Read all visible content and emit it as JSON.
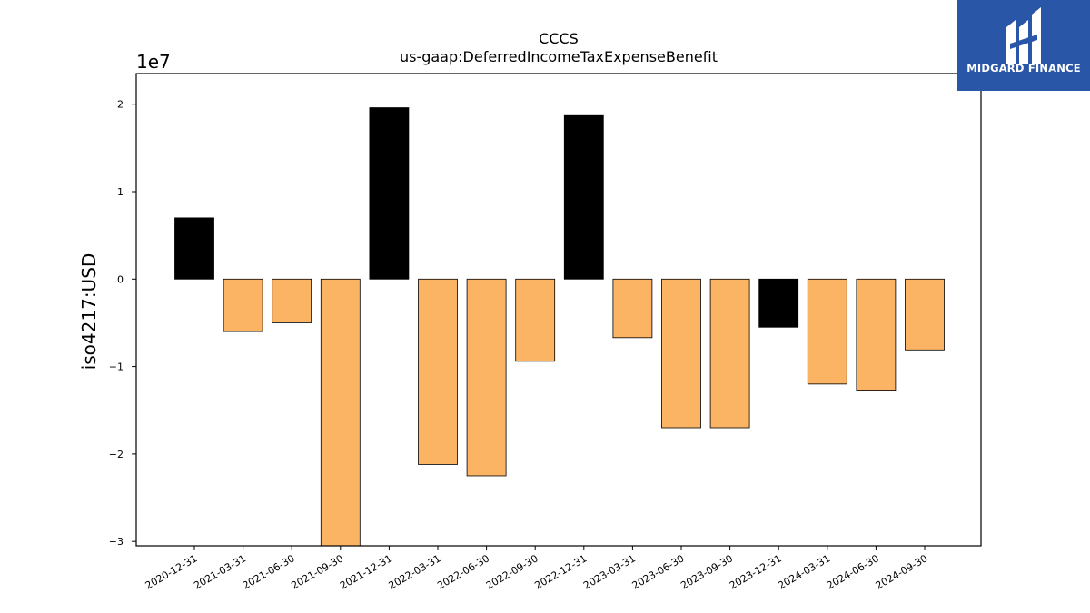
{
  "chart_data": {
    "type": "bar",
    "title": "CCCS",
    "subtitle": "us-gaap:DeferredIncomeTaxExpenseBenefit",
    "ylabel": "iso4217:USD",
    "xlabel": "",
    "y_offset_label": "1e7",
    "y_scale": 10000000,
    "ylim": [
      -30500000,
      23500000
    ],
    "yticks": [
      -3,
      -2,
      -1,
      0,
      1,
      2
    ],
    "ytick_labels": [
      "−3",
      "−2",
      "−1",
      "0",
      "1",
      "2"
    ],
    "categories": [
      "2020-12-31",
      "2021-03-31",
      "2021-06-30",
      "2021-09-30",
      "2021-12-31",
      "2022-03-31",
      "2022-06-30",
      "2022-09-30",
      "2022-12-31",
      "2023-03-31",
      "2023-06-30",
      "2023-09-30",
      "2023-12-31",
      "2024-03-31",
      "2024-06-30",
      "2024-09-30"
    ],
    "values": [
      7000000,
      -6000000,
      -5000000,
      -30500000,
      19600000,
      -21200000,
      -22500000,
      -9400000,
      18700000,
      -6700000,
      -17000000,
      -17000000,
      -5500000,
      -12000000,
      -12700000,
      -8100000
    ],
    "bar_colors": [
      "#000000",
      "#fbb463",
      "#fbb463",
      "#fbb463",
      "#000000",
      "#fbb463",
      "#fbb463",
      "#fbb463",
      "#000000",
      "#fbb463",
      "#fbb463",
      "#fbb463",
      "#000000",
      "#fbb463",
      "#fbb463",
      "#fbb463"
    ],
    "grid": false
  },
  "logo": {
    "text": "MIDGARD FINANCE",
    "background": "#2a56a8"
  }
}
